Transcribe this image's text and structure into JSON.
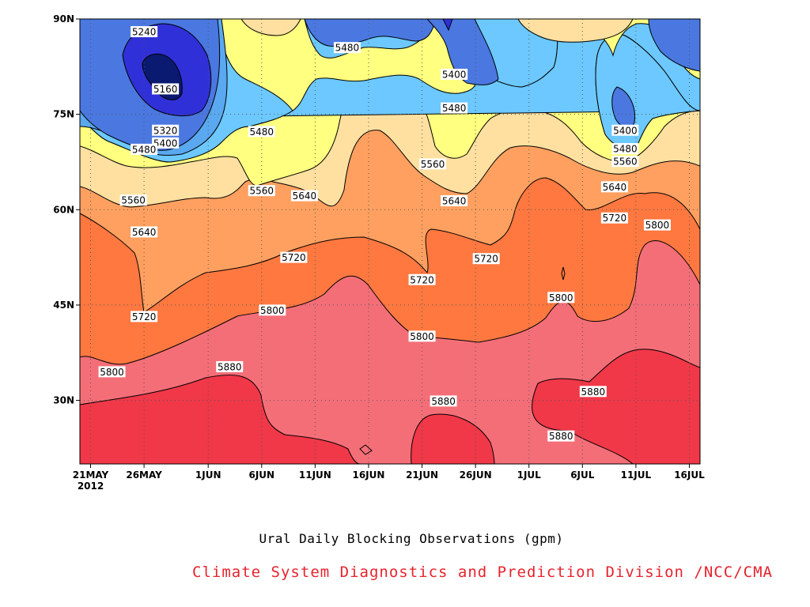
{
  "chart_data": {
    "type": "heatmap",
    "title": "Ural Daily Blocking Observations (gpm)",
    "credit": "Climate System Diagnostics and Prediction Division /NCC/CMA",
    "x_ticks": [
      "21MAY",
      "26MAY",
      "1JUN",
      "6JUN",
      "11JUN",
      "16JUN",
      "21JUN",
      "26JUN",
      "1JUL",
      "6JUL",
      "11JUL",
      "16JUL"
    ],
    "x_year_label": "2012",
    "y_ticks": [
      "30N",
      "45N",
      "60N",
      "75N",
      "90N"
    ],
    "y_tick_values": [
      30,
      45,
      60,
      75,
      90
    ],
    "ylim": [
      20,
      90
    ],
    "x_range": [
      "2012-05-20",
      "2012-07-17"
    ],
    "levels": [
      5160,
      5240,
      5320,
      5400,
      5480,
      5560,
      5640,
      5720,
      5800,
      5880
    ],
    "level_colors": [
      "#0a1a70",
      "#3030d8",
      "#4a78e0",
      "#5aa8f0",
      "#6cc8ff",
      "#ffff80",
      "#ffe0a0",
      "#ffa060",
      "#ff7840",
      "#f46e78",
      "#f03848"
    ],
    "contour_labels": [
      {
        "text": "5240",
        "date": "2012-05-26",
        "lat": 88
      },
      {
        "text": "5160",
        "date": "2012-05-28",
        "lat": 79
      },
      {
        "text": "5320",
        "date": "2012-05-28",
        "lat": 72.5
      },
      {
        "text": "5400",
        "date": "2012-05-28",
        "lat": 70.5
      },
      {
        "text": "5480",
        "date": "2012-05-26",
        "lat": 69.5
      },
      {
        "text": "5480",
        "date": "2012-06-14",
        "lat": 85.5
      },
      {
        "text": "5480",
        "date": "2012-06-06",
        "lat": 72.3
      },
      {
        "text": "5400",
        "date": "2012-06-24",
        "lat": 81.3
      },
      {
        "text": "5480",
        "date": "2012-06-24",
        "lat": 76
      },
      {
        "text": "5400",
        "date": "2012-07-10",
        "lat": 72.5
      },
      {
        "text": "5480",
        "date": "2012-07-10",
        "lat": 69.6
      },
      {
        "text": "5560",
        "date": "2012-07-10",
        "lat": 67.6
      },
      {
        "text": "5560",
        "date": "2012-05-25",
        "lat": 61.5
      },
      {
        "text": "5560",
        "date": "2012-06-06",
        "lat": 63
      },
      {
        "text": "5640",
        "date": "2012-06-10",
        "lat": 62.2
      },
      {
        "text": "5560",
        "date": "2012-06-22",
        "lat": 67.2
      },
      {
        "text": "5640",
        "date": "2012-06-24",
        "lat": 61.4
      },
      {
        "text": "5640",
        "date": "2012-07-09",
        "lat": 63.6
      },
      {
        "text": "5720",
        "date": "2012-07-09",
        "lat": 58.7
      },
      {
        "text": "5640",
        "date": "2012-05-26",
        "lat": 56.5
      },
      {
        "text": "5720",
        "date": "2012-06-09",
        "lat": 52.5
      },
      {
        "text": "5720",
        "date": "2012-06-27",
        "lat": 52.3
      },
      {
        "text": "5720",
        "date": "2012-06-21",
        "lat": 49
      },
      {
        "text": "5800",
        "date": "2012-07-13",
        "lat": 57.6
      },
      {
        "text": "5720",
        "date": "2012-05-26",
        "lat": 43.2
      },
      {
        "text": "5800",
        "date": "2012-06-07",
        "lat": 44.2
      },
      {
        "text": "5800",
        "date": "2012-07-04",
        "lat": 46.2
      },
      {
        "text": "5800",
        "date": "2012-06-21",
        "lat": 40.1
      },
      {
        "text": "5800",
        "date": "2012-05-23",
        "lat": 34.5
      },
      {
        "text": "5880",
        "date": "2012-06-03",
        "lat": 35.3
      },
      {
        "text": "5880",
        "date": "2012-06-23",
        "lat": 29.9
      },
      {
        "text": "5880",
        "date": "2012-07-07",
        "lat": 31.4
      },
      {
        "text": "5880",
        "date": "2012-07-04",
        "lat": 24.4
      }
    ]
  }
}
